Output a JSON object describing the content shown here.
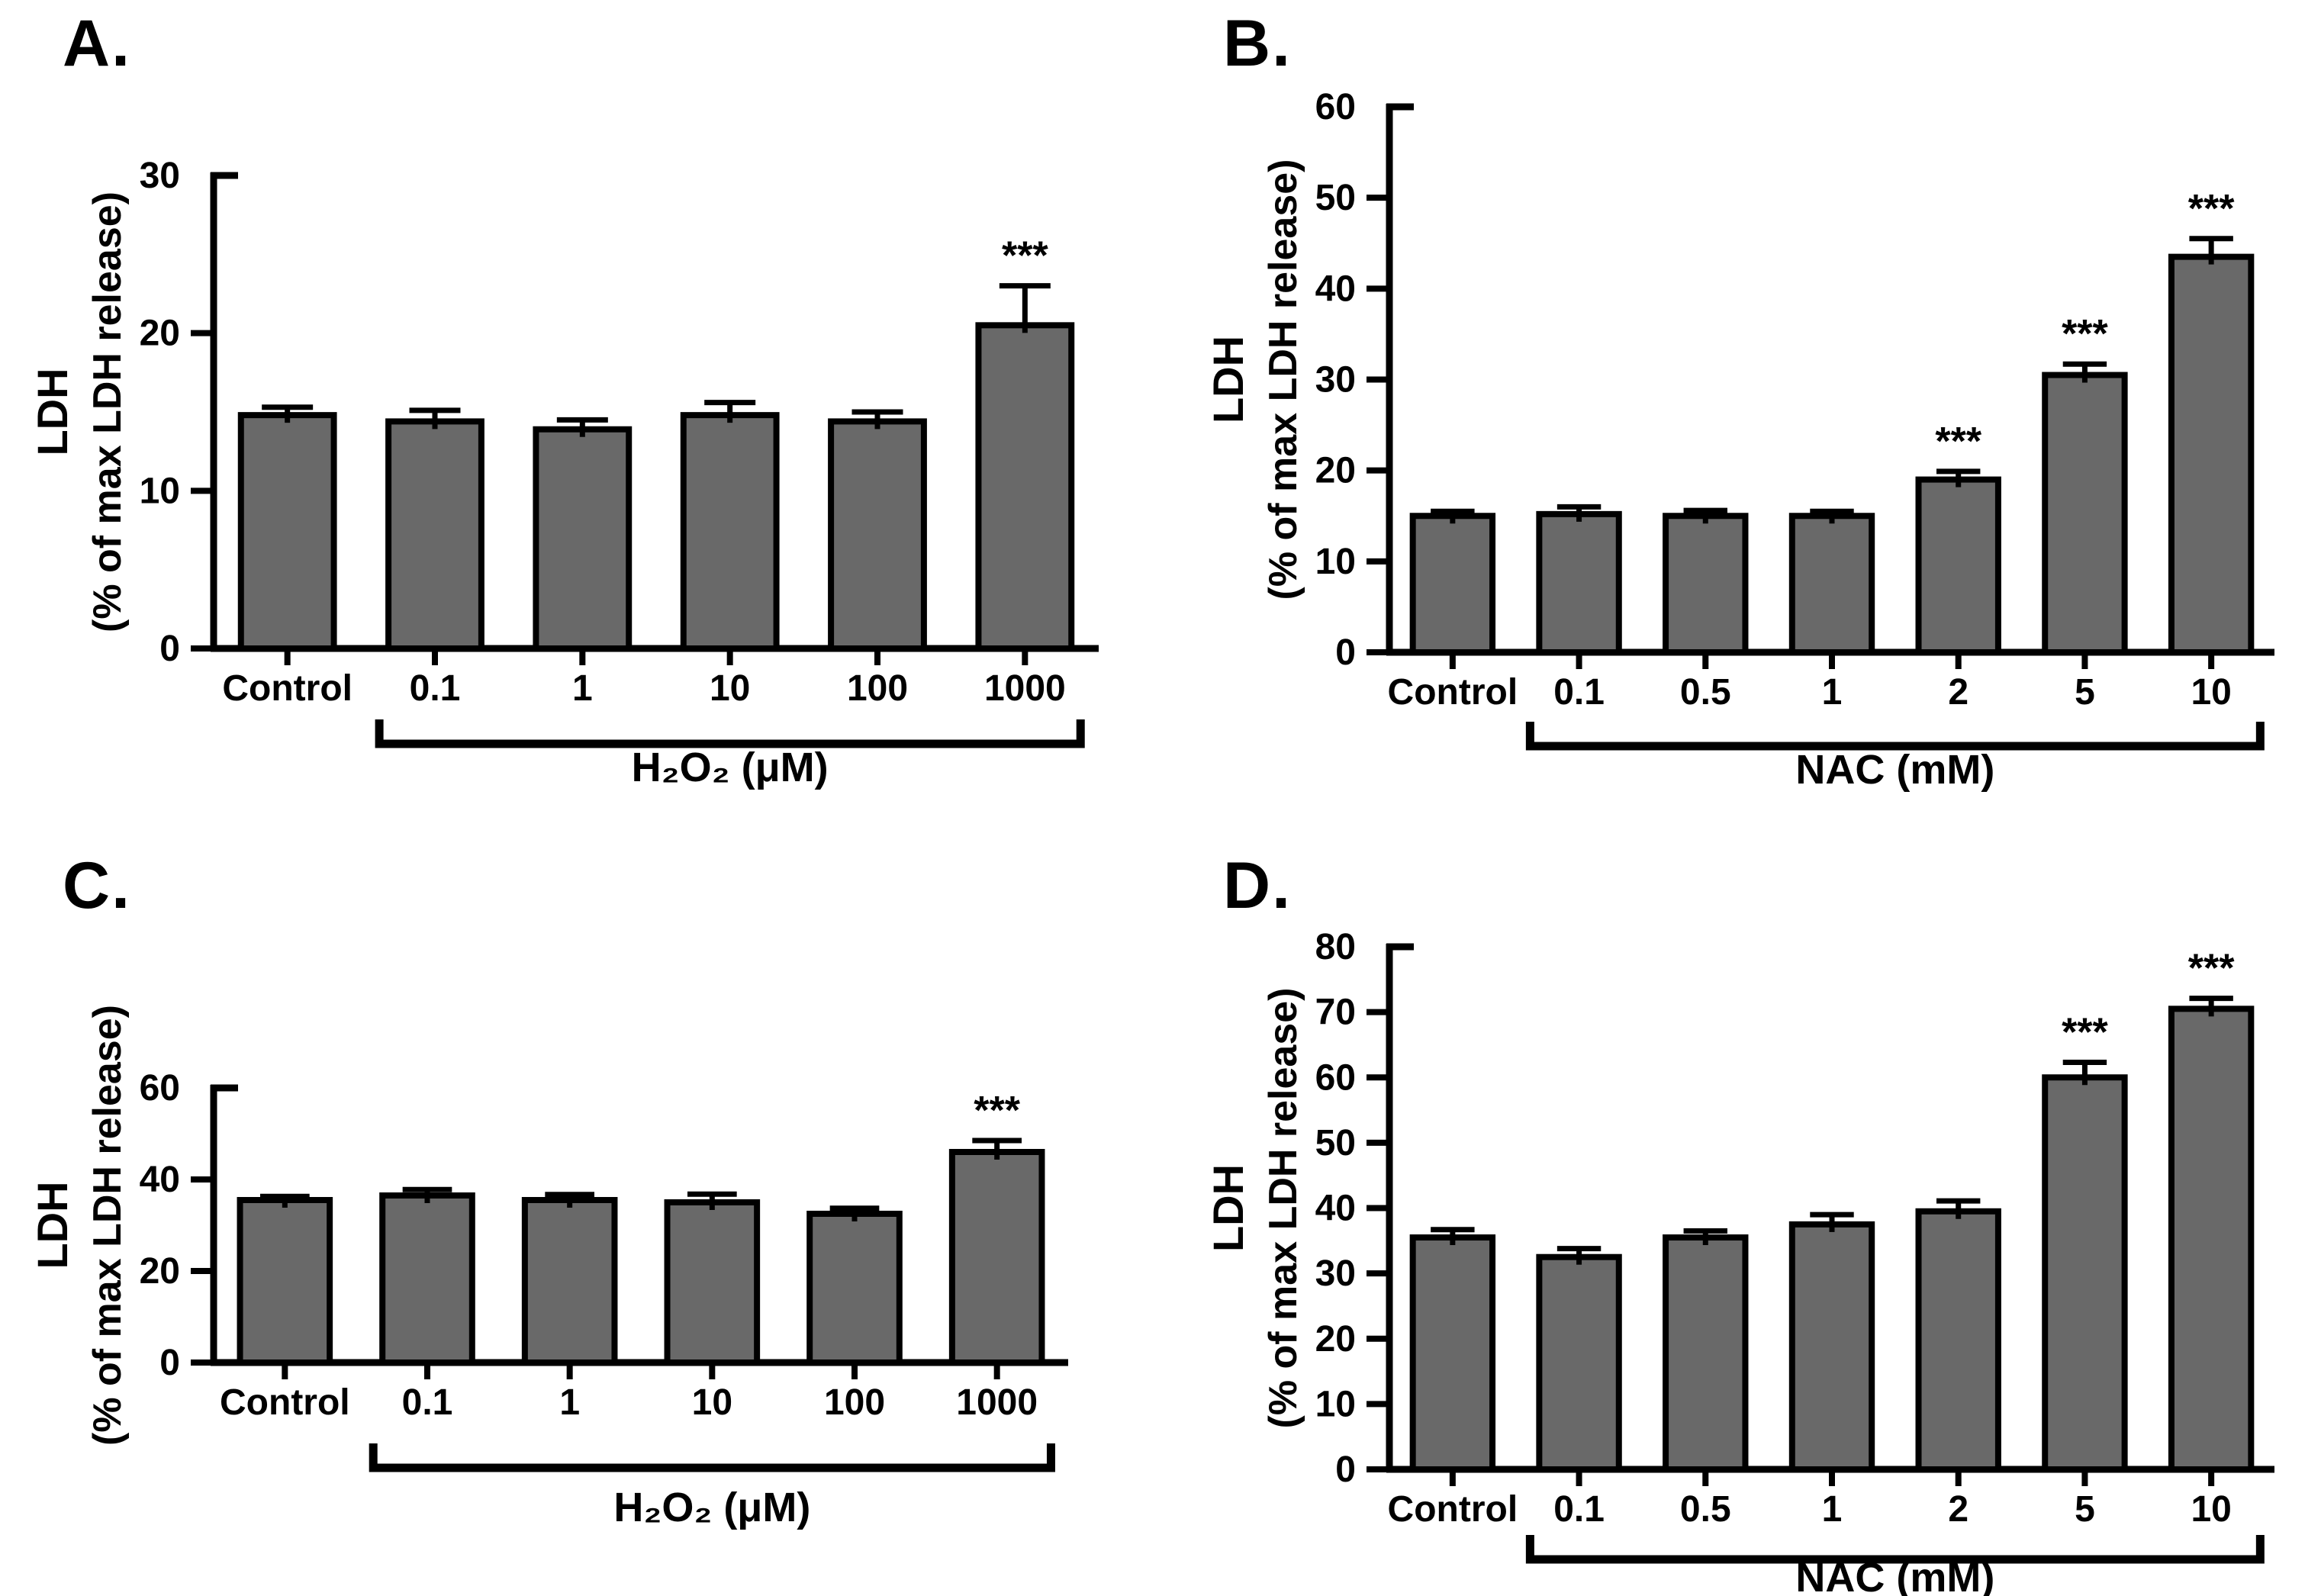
{
  "figure": {
    "description": "Four-panel bar chart figure of LDH release",
    "bar_fill_color": "#696969",
    "line_color": "#000000",
    "significance_marker": "***"
  },
  "chart_data": [
    {
      "type": "bar",
      "panel_label": "A.",
      "ylabel_line1": "LDH",
      "ylabel_line2": "(% of max LDH release)",
      "xlabel": "H₂O₂ (μM)",
      "categories": [
        "Control",
        "0.1",
        "1",
        "10",
        "100",
        "1000"
      ],
      "values": [
        14.8,
        14.4,
        13.9,
        14.8,
        14.4,
        20.5
      ],
      "errors": [
        0.5,
        0.7,
        0.6,
        0.8,
        0.6,
        2.5
      ],
      "significance": [
        "",
        "",
        "",
        "",
        "",
        "***"
      ],
      "ylim": [
        0,
        30
      ],
      "yticks": [
        0,
        10,
        20,
        30
      ],
      "bracket_range": [
        1,
        5
      ],
      "grid": false,
      "legend": false
    },
    {
      "type": "bar",
      "panel_label": "B.",
      "ylabel_line1": "LDH",
      "ylabel_line2": "(% of max LDH release)",
      "xlabel": "NAC (mM)",
      "categories": [
        "Control",
        "0.1",
        "0.5",
        "1",
        "2",
        "5",
        "10"
      ],
      "values": [
        15.0,
        15.2,
        15.0,
        15.0,
        19.0,
        30.5,
        43.5
      ],
      "errors": [
        0.5,
        0.8,
        0.6,
        0.5,
        0.9,
        1.2,
        2.0
      ],
      "significance": [
        "",
        "",
        "",
        "",
        "***",
        "***",
        "***"
      ],
      "ylim": [
        0,
        60
      ],
      "yticks": [
        0,
        10,
        20,
        30,
        40,
        50,
        60
      ],
      "bracket_range": [
        1,
        6
      ],
      "grid": false,
      "legend": false
    },
    {
      "type": "bar",
      "panel_label": "C.",
      "ylabel_line1": "LDH",
      "ylabel_line2": "(% of max LDH release)",
      "xlabel": "H₂O₂ (μM)",
      "categories": [
        "Control",
        "0.1",
        "1",
        "10",
        "100",
        "1000"
      ],
      "values": [
        35.5,
        36.5,
        35.5,
        35.0,
        32.5,
        46.0
      ],
      "errors": [
        0.8,
        1.3,
        1.2,
        1.8,
        1.2,
        2.5
      ],
      "significance": [
        "",
        "",
        "",
        "",
        "",
        "***"
      ],
      "ylim": [
        0,
        60
      ],
      "yticks": [
        0,
        20,
        40,
        60
      ],
      "bracket_range": [
        1,
        5
      ],
      "grid": false,
      "legend": false
    },
    {
      "type": "bar",
      "panel_label": "D.",
      "ylabel_line1": "LDH",
      "ylabel_line2": "(% of max LDH release)",
      "xlabel": "NAC (mM)",
      "categories": [
        "Control",
        "0.1",
        "0.5",
        "1",
        "2",
        "5",
        "10"
      ],
      "values": [
        35.5,
        32.5,
        35.5,
        37.5,
        39.5,
        60.0,
        70.5
      ],
      "errors": [
        1.2,
        1.3,
        1.0,
        1.5,
        1.6,
        2.3,
        1.6
      ],
      "significance": [
        "",
        "",
        "",
        "",
        "",
        "***",
        "***"
      ],
      "ylim": [
        0,
        80
      ],
      "yticks": [
        0,
        10,
        20,
        30,
        40,
        50,
        60,
        70,
        80
      ],
      "bracket_range": [
        1,
        6
      ],
      "grid": false,
      "legend": false
    }
  ]
}
